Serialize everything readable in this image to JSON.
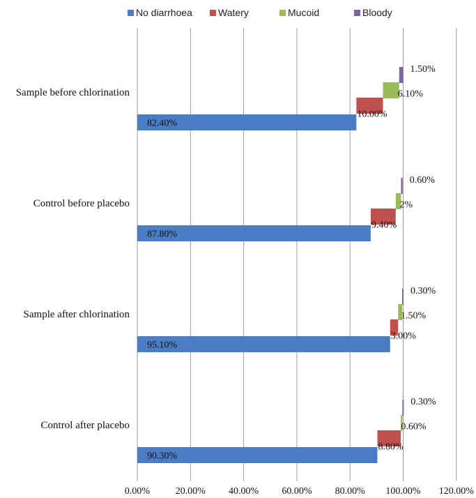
{
  "chart_data": {
    "type": "bar",
    "orientation": "horizontal",
    "stacked": "overlapped-offset",
    "title": "",
    "xlabel": "",
    "ylabel": "",
    "categories": [
      "Sample before chlorination",
      "Control before placebo",
      "Sample after chlorination",
      "Control after placebo"
    ],
    "series": [
      {
        "name": "No diarrhoea",
        "color": "#4a7dc4",
        "values": [
          82.4,
          87.8,
          95.1,
          90.3
        ],
        "labels": [
          "82.40%",
          "87.80%",
          "95.10%",
          "90.30%"
        ]
      },
      {
        "name": "Watery",
        "color": "#c0504d",
        "values": [
          10.0,
          9.4,
          3.0,
          8.8
        ],
        "labels": [
          "10.00%",
          "9.40%",
          "3.00%",
          "8.80%"
        ]
      },
      {
        "name": "Mucoid",
        "color": "#9bbb59",
        "values": [
          6.1,
          2.0,
          1.5,
          0.6
        ],
        "labels": [
          "6.10%",
          "2%",
          "1.50%",
          "0.60%"
        ]
      },
      {
        "name": "Bloody",
        "color": "#8064a2",
        "values": [
          1.5,
          0.6,
          0.3,
          0.3
        ],
        "labels": [
          "1.50%",
          "0.60%",
          "0.30%",
          "0.30%"
        ]
      }
    ],
    "xlim": [
      0,
      120
    ],
    "xticks": [
      "0.00%",
      "20.00%",
      "40.00%",
      "60.00%",
      "80.00%",
      "100.00%",
      "120.00%"
    ],
    "grid": true,
    "legend_position": "top"
  }
}
